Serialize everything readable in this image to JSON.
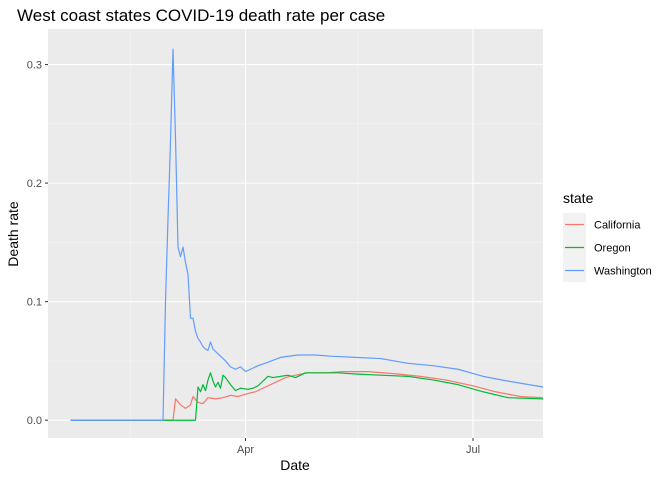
{
  "chart_data": {
    "type": "line",
    "title": "West coast states COVID-19 death rate per case",
    "xlabel": "Date",
    "ylabel": "Death rate",
    "x_ticks": [
      "Apr",
      "Jul"
    ],
    "y_ticks": [
      "0.0",
      "0.1",
      "0.2",
      "0.3"
    ],
    "ylim": [
      -0.015,
      0.33
    ],
    "xlim": [
      "2020-01-13",
      "2020-07-29"
    ],
    "grid": true,
    "legend": {
      "title": "state",
      "position": "right"
    },
    "series": [
      {
        "name": "California",
        "color": "#F8766D",
        "points": [
          [
            "2020-01-22",
            0
          ],
          [
            "2020-03-03",
            0
          ],
          [
            "2020-03-04",
            0.018
          ],
          [
            "2020-03-06",
            0.013
          ],
          [
            "2020-03-08",
            0.01
          ],
          [
            "2020-03-10",
            0.013
          ],
          [
            "2020-03-11",
            0.02
          ],
          [
            "2020-03-13",
            0.015
          ],
          [
            "2020-03-15",
            0.014
          ],
          [
            "2020-03-17",
            0.019
          ],
          [
            "2020-03-20",
            0.018
          ],
          [
            "2020-03-23",
            0.019
          ],
          [
            "2020-03-26",
            0.021
          ],
          [
            "2020-03-29",
            0.02
          ],
          [
            "2020-04-01",
            0.022
          ],
          [
            "2020-04-05",
            0.024
          ],
          [
            "2020-04-09",
            0.028
          ],
          [
            "2020-04-13",
            0.032
          ],
          [
            "2020-04-17",
            0.036
          ],
          [
            "2020-04-21",
            0.038
          ],
          [
            "2020-04-26",
            0.04
          ],
          [
            "2020-05-03",
            0.04
          ],
          [
            "2020-05-10",
            0.041
          ],
          [
            "2020-05-20",
            0.041
          ],
          [
            "2020-06-01",
            0.039
          ],
          [
            "2020-06-10",
            0.037
          ],
          [
            "2020-06-20",
            0.034
          ],
          [
            "2020-07-01",
            0.029
          ],
          [
            "2020-07-10",
            0.024
          ],
          [
            "2020-07-20",
            0.02
          ],
          [
            "2020-07-29",
            0.019
          ]
        ]
      },
      {
        "name": "Oregon",
        "color": "#00BA38",
        "points": [
          [
            "2020-01-22",
            0
          ],
          [
            "2020-03-12",
            0
          ],
          [
            "2020-03-13",
            0.028
          ],
          [
            "2020-03-14",
            0.024
          ],
          [
            "2020-03-15",
            0.03
          ],
          [
            "2020-03-16",
            0.025
          ],
          [
            "2020-03-17",
            0.034
          ],
          [
            "2020-03-18",
            0.04
          ],
          [
            "2020-03-19",
            0.033
          ],
          [
            "2020-03-20",
            0.028
          ],
          [
            "2020-03-21",
            0.032
          ],
          [
            "2020-03-22",
            0.027
          ],
          [
            "2020-03-23",
            0.038
          ],
          [
            "2020-03-24",
            0.036
          ],
          [
            "2020-03-26",
            0.03
          ],
          [
            "2020-03-28",
            0.025
          ],
          [
            "2020-03-30",
            0.027
          ],
          [
            "2020-04-02",
            0.026
          ],
          [
            "2020-04-04",
            0.027
          ],
          [
            "2020-04-06",
            0.029
          ],
          [
            "2020-04-08",
            0.033
          ],
          [
            "2020-04-10",
            0.037
          ],
          [
            "2020-04-12",
            0.036
          ],
          [
            "2020-04-15",
            0.037
          ],
          [
            "2020-04-18",
            0.038
          ],
          [
            "2020-04-21",
            0.036
          ],
          [
            "2020-04-25",
            0.04
          ],
          [
            "2020-05-01",
            0.04
          ],
          [
            "2020-05-08",
            0.04
          ],
          [
            "2020-05-15",
            0.039
          ],
          [
            "2020-05-25",
            0.038
          ],
          [
            "2020-06-05",
            0.037
          ],
          [
            "2020-06-15",
            0.034
          ],
          [
            "2020-06-25",
            0.03
          ],
          [
            "2020-07-05",
            0.024
          ],
          [
            "2020-07-15",
            0.019
          ],
          [
            "2020-07-29",
            0.018
          ]
        ]
      },
      {
        "name": "Washington",
        "color": "#619CFF",
        "points": [
          [
            "2020-01-22",
            0
          ],
          [
            "2020-02-28",
            0
          ],
          [
            "2020-02-29",
            0.1
          ],
          [
            "2020-03-01",
            0.17
          ],
          [
            "2020-03-02",
            0.235
          ],
          [
            "2020-03-03",
            0.313
          ],
          [
            "2020-03-04",
            0.238
          ],
          [
            "2020-03-05",
            0.146
          ],
          [
            "2020-03-06",
            0.138
          ],
          [
            "2020-03-07",
            0.146
          ],
          [
            "2020-03-08",
            0.133
          ],
          [
            "2020-03-09",
            0.123
          ],
          [
            "2020-03-10",
            0.086
          ],
          [
            "2020-03-11",
            0.086
          ],
          [
            "2020-03-12",
            0.075
          ],
          [
            "2020-03-13",
            0.069
          ],
          [
            "2020-03-14",
            0.066
          ],
          [
            "2020-03-15",
            0.062
          ],
          [
            "2020-03-16",
            0.06
          ],
          [
            "2020-03-17",
            0.059
          ],
          [
            "2020-03-18",
            0.066
          ],
          [
            "2020-03-19",
            0.06
          ],
          [
            "2020-03-20",
            0.058
          ],
          [
            "2020-03-22",
            0.054
          ],
          [
            "2020-03-24",
            0.05
          ],
          [
            "2020-03-26",
            0.045
          ],
          [
            "2020-03-28",
            0.043
          ],
          [
            "2020-03-30",
            0.045
          ],
          [
            "2020-04-01",
            0.041
          ],
          [
            "2020-04-03",
            0.043
          ],
          [
            "2020-04-06",
            0.046
          ],
          [
            "2020-04-10",
            0.049
          ],
          [
            "2020-04-15",
            0.053
          ],
          [
            "2020-04-22",
            0.055
          ],
          [
            "2020-04-29",
            0.055
          ],
          [
            "2020-05-05",
            0.054
          ],
          [
            "2020-05-15",
            0.053
          ],
          [
            "2020-05-25",
            0.052
          ],
          [
            "2020-06-05",
            0.048
          ],
          [
            "2020-06-15",
            0.046
          ],
          [
            "2020-06-25",
            0.043
          ],
          [
            "2020-07-05",
            0.037
          ],
          [
            "2020-07-15",
            0.033
          ],
          [
            "2020-07-29",
            0.028
          ]
        ]
      }
    ]
  }
}
